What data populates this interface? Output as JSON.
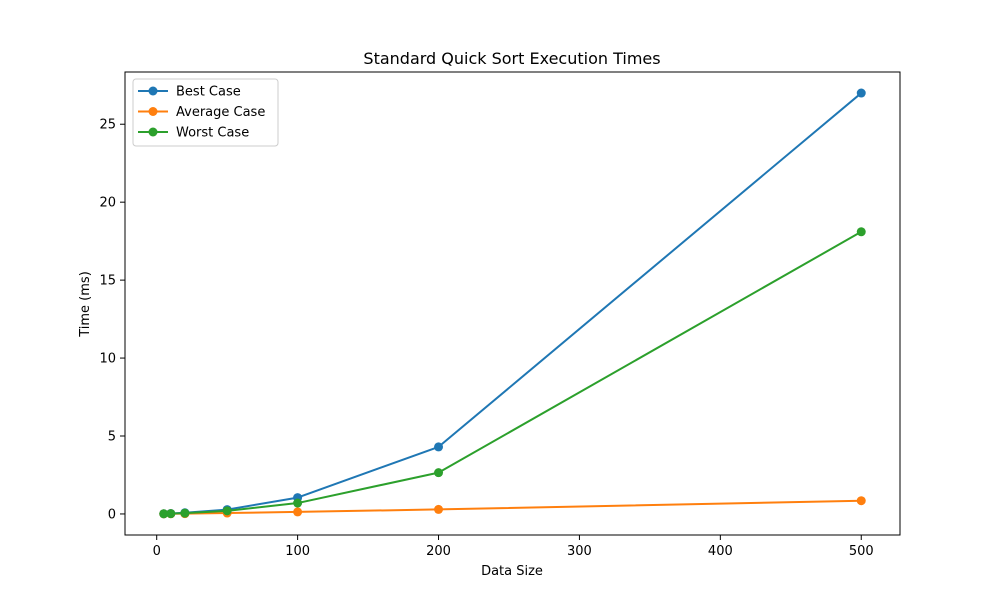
{
  "chart_data": {
    "type": "line",
    "title": "Standard Quick Sort Execution Times",
    "xlabel": "Data Size",
    "ylabel": "Time (ms)",
    "x": [
      5,
      10,
      20,
      50,
      100,
      200,
      500
    ],
    "xlim": [
      -22.5,
      527.5
    ],
    "ylim": [
      -1.35,
      28.35
    ],
    "xticks": [
      0,
      100,
      200,
      300,
      400,
      500
    ],
    "yticks": [
      0,
      5,
      10,
      15,
      20,
      25
    ],
    "grid": false,
    "legend_position": "upper-left",
    "series": [
      {
        "name": "Best Case",
        "color": "#1f77b4",
        "values": [
          0.01,
          0.03,
          0.08,
          0.28,
          1.05,
          4.3,
          27.0
        ]
      },
      {
        "name": "Average Case",
        "color": "#ff7f0e",
        "values": [
          0.005,
          0.01,
          0.02,
          0.06,
          0.13,
          0.29,
          0.85
        ]
      },
      {
        "name": "Worst Case",
        "color": "#2ca02c",
        "values": [
          0.01,
          0.02,
          0.05,
          0.2,
          0.7,
          2.65,
          18.1
        ]
      }
    ]
  }
}
